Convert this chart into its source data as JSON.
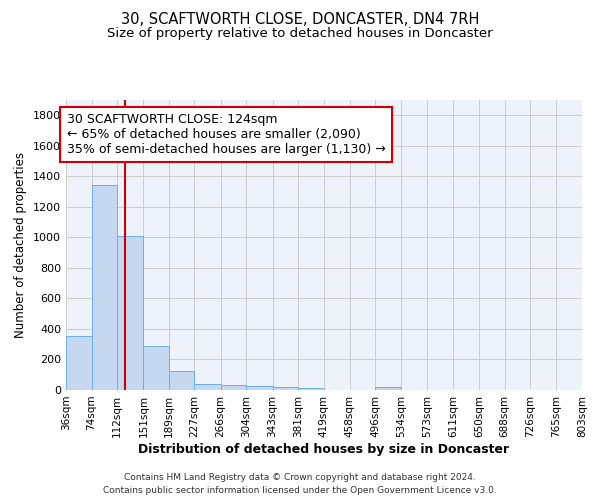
{
  "title": "30, SCAFTWORTH CLOSE, DONCASTER, DN4 7RH",
  "subtitle": "Size of property relative to detached houses in Doncaster",
  "xlabel": "Distribution of detached houses by size in Doncaster",
  "ylabel": "Number of detached properties",
  "footer_line1": "Contains HM Land Registry data © Crown copyright and database right 2024.",
  "footer_line2": "Contains public sector information licensed under the Open Government Licence v3.0.",
  "bin_edges": [
    36,
    74,
    112,
    151,
    189,
    227,
    266,
    304,
    343,
    381,
    419,
    458,
    496,
    534,
    573,
    611,
    650,
    688,
    726,
    765,
    803
  ],
  "bar_heights": [
    355,
    1345,
    1010,
    290,
    125,
    42,
    35,
    25,
    20,
    15,
    0,
    0,
    20,
    0,
    0,
    0,
    0,
    0,
    0,
    0
  ],
  "bar_color": "#c5d8f0",
  "bar_edge_color": "#6aaee8",
  "vline_x": 124,
  "vline_color": "#cc0000",
  "annotation_line1": "30 SCAFTWORTH CLOSE: 124sqm",
  "annotation_line2": "← 65% of detached houses are smaller (2,090)",
  "annotation_line3": "35% of semi-detached houses are larger (1,130) →",
  "annotation_box_color": "#cc0000",
  "annotation_fontsize": 9,
  "ylim": [
    0,
    1900
  ],
  "yticks": [
    0,
    200,
    400,
    600,
    800,
    1000,
    1200,
    1400,
    1600,
    1800
  ],
  "grid_color": "#cccccc",
  "bg_color": "#eef2fa",
  "title_fontsize": 10.5,
  "subtitle_fontsize": 9.5,
  "xlabel_fontsize": 9,
  "ylabel_fontsize": 8.5,
  "xtick_fontsize": 7.5,
  "ytick_fontsize": 8
}
